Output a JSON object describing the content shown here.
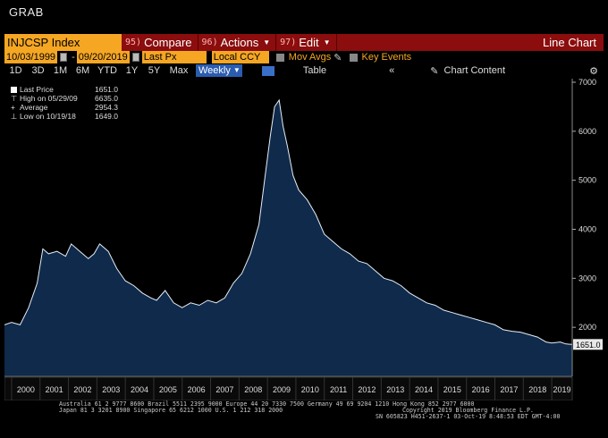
{
  "window_title": "GRAB",
  "toolbar": {
    "ticker": "INJCSP Index",
    "compare": {
      "num": "95)",
      "label": "Compare"
    },
    "actions": {
      "num": "96)",
      "label": "Actions"
    },
    "edit": {
      "num": "97)",
      "label": "Edit"
    },
    "chart_type": "Line Chart"
  },
  "controls": {
    "start_date": "10/03/1999",
    "end_date": "09/20/2019",
    "field": "Last Px",
    "currency": "Local CCY",
    "mov_avgs": "Mov Avgs",
    "key_events": "Key Events",
    "periods": [
      "1D",
      "3D",
      "1M",
      "6M",
      "YTD",
      "1Y",
      "5Y",
      "Max"
    ],
    "frequency": "Weekly",
    "table": "Table",
    "chart_content": "Chart Content"
  },
  "legend": {
    "last_price_label": "Last Price",
    "last_price_value": "1651.0",
    "high_label": "High on 05/29/09",
    "high_value": "6635.0",
    "average_label": "Average",
    "average_value": "2954.3",
    "low_label": "Low on 10/19/18",
    "low_value": "1649.0"
  },
  "last_value_tag": "1651.0",
  "footer": {
    "line1": "Australia 61 2 9777 8600 Brazil 5511 2395 9000 Europe 44 20 7330 7500 Germany 49 69 9204 1210 Hong Kong 852 2977 6000",
    "line2": "Japan 81 3 3201 8900      Singapore 65 6212 1000      U.S. 1 212 318 2000",
    "line3": "Copyright 2019 Bloomberg Finance L.P.",
    "line4": "SN 605823 H451-2637-1 03-Oct-19  8:48:53 EDT  GMT-4:00"
  },
  "colors": {
    "accent": "#f5a623",
    "toolbar_red": "#8b0d0d",
    "area_fill": "#0f2a4a",
    "line": "#e6eef8"
  },
  "chart_data": {
    "type": "area",
    "title": "",
    "xlabel": "",
    "ylabel": "",
    "x_ticks": [
      "2000",
      "2001",
      "2002",
      "2003",
      "2004",
      "2005",
      "2006",
      "2007",
      "2008",
      "2009",
      "2010",
      "2011",
      "2012",
      "2013",
      "2014",
      "2015",
      "2016",
      "2017",
      "2018",
      "2019"
    ],
    "y_ticks": [
      "2000",
      "3000",
      "4000",
      "5000",
      "6000",
      "7000"
    ],
    "ylim": [
      1000,
      7000
    ],
    "xlim": [
      1999.75,
      2019.72
    ],
    "grid": false,
    "series": [
      {
        "x": [
          1999.75,
          2000.0,
          2000.3,
          2000.6,
          2000.9,
          2001.1,
          2001.3,
          2001.6,
          2001.9,
          2002.1,
          2002.4,
          2002.7,
          2002.9,
          2003.1,
          2003.4,
          2003.7,
          2004.0,
          2004.3,
          2004.6,
          2004.9,
          2005.1,
          2005.4,
          2005.7,
          2006.0,
          2006.3,
          2006.6,
          2006.9,
          2007.2,
          2007.5,
          2007.8,
          2008.1,
          2008.4,
          2008.7,
          2008.9,
          2009.1,
          2009.25,
          2009.41,
          2009.55,
          2009.7,
          2009.9,
          2010.1,
          2010.4,
          2010.7,
          2011.0,
          2011.3,
          2011.6,
          2011.9,
          2012.2,
          2012.5,
          2012.8,
          2013.1,
          2013.4,
          2013.7,
          2014.0,
          2014.3,
          2014.6,
          2014.9,
          2015.2,
          2015.5,
          2015.8,
          2016.1,
          2016.4,
          2016.7,
          2017.0,
          2017.3,
          2017.6,
          2017.9,
          2018.2,
          2018.5,
          2018.8,
          2019.0,
          2019.3,
          2019.5,
          2019.72
        ],
        "y": [
          2050,
          2100,
          2050,
          2400,
          2900,
          3600,
          3500,
          3550,
          3450,
          3700,
          3550,
          3400,
          3500,
          3700,
          3550,
          3200,
          2950,
          2850,
          2700,
          2600,
          2550,
          2750,
          2500,
          2400,
          2500,
          2450,
          2550,
          2500,
          2600,
          2900,
          3100,
          3500,
          4100,
          5000,
          5900,
          6500,
          6635,
          6100,
          5700,
          5100,
          4800,
          4600,
          4300,
          3900,
          3750,
          3600,
          3500,
          3350,
          3300,
          3150,
          3000,
          2950,
          2850,
          2700,
          2600,
          2500,
          2450,
          2350,
          2300,
          2250,
          2200,
          2150,
          2100,
          2050,
          1950,
          1920,
          1900,
          1850,
          1800,
          1700,
          1680,
          1700,
          1660,
          1651
        ]
      }
    ]
  }
}
